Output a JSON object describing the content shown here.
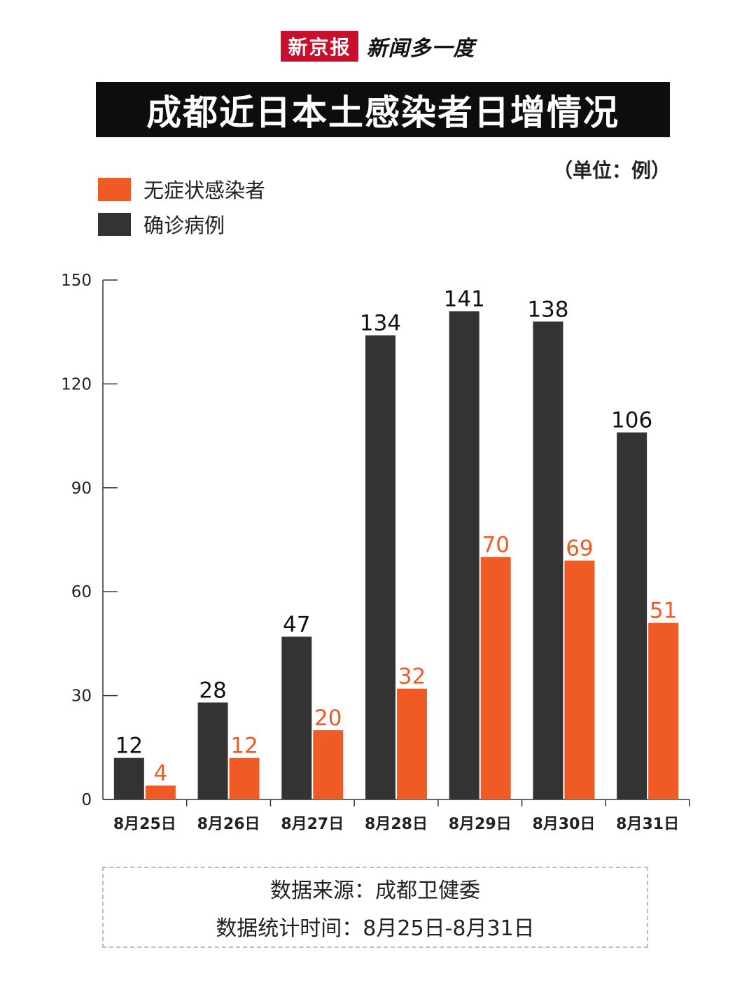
{
  "brand": {
    "logo": "新京报",
    "column": "新闻多一度"
  },
  "title": "成都近日本土感染者日增情况",
  "unit": "（单位：例）",
  "colors": {
    "asymptomatic": "#f05a24",
    "confirmed": "#333333",
    "axis": "#333333"
  },
  "legend": [
    {
      "label": "无症状感染者",
      "color": "#f05a24"
    },
    {
      "label": "确诊病例",
      "color": "#333333"
    }
  ],
  "chart_data": {
    "type": "bar",
    "categories": [
      "8月25日",
      "8月26日",
      "8月27日",
      "8月28日",
      "8月29日",
      "8月30日",
      "8月31日"
    ],
    "series": [
      {
        "name": "确诊病例",
        "values": [
          12,
          28,
          47,
          134,
          141,
          138,
          106
        ]
      },
      {
        "name": "无症状感染者",
        "values": [
          4,
          12,
          20,
          32,
          70,
          69,
          51
        ]
      }
    ],
    "ylim": [
      0,
      150
    ],
    "yticks": [
      0,
      30,
      60,
      90,
      120,
      150
    ],
    "grid": false,
    "legend_position": "top-left",
    "xlabel": "",
    "ylabel": ""
  },
  "footer": {
    "source": "数据来源：成都卫健委",
    "period": "数据统计时间：8月25日-8月31日"
  }
}
